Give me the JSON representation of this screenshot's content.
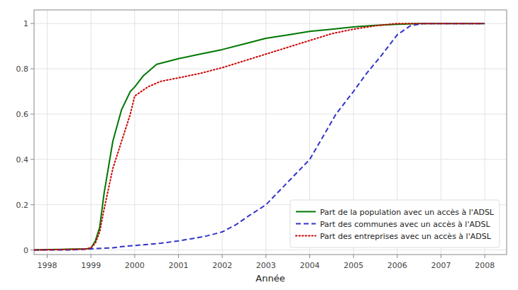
{
  "chart_data": {
    "type": "line",
    "title": "",
    "xlabel": "Année",
    "xlim": [
      1997.7,
      2008.5
    ],
    "ylim": [
      -0.02,
      1.06
    ],
    "xticks": [
      1998,
      1999,
      2000,
      2001,
      2002,
      2003,
      2004,
      2005,
      2006,
      2007,
      2008
    ],
    "yticks": [
      0,
      0.2,
      0.4,
      0.6,
      0.8,
      1
    ],
    "grid": true,
    "legend": "lower right",
    "series": [
      {
        "name": "Part de la population avec un accès à l'ADSL",
        "color": "#007700",
        "line_style": "solid",
        "x": [
          1997.7,
          1998.0,
          1998.3,
          1998.6,
          1998.9,
          1999.0,
          1999.1,
          1999.2,
          1999.3,
          1999.5,
          1999.7,
          1999.9,
          2000.0,
          2000.2,
          2000.5,
          2001.0,
          2001.5,
          2002.0,
          2002.5,
          2003.0,
          2003.5,
          2004.0,
          2004.5,
          2005.0,
          2005.5,
          2006.0,
          2006.5,
          2007.0,
          2007.5,
          2008.0
        ],
        "values": [
          0.0,
          0.002,
          0.003,
          0.004,
          0.005,
          0.008,
          0.04,
          0.1,
          0.25,
          0.48,
          0.62,
          0.7,
          0.72,
          0.77,
          0.82,
          0.845,
          0.865,
          0.885,
          0.91,
          0.935,
          0.95,
          0.965,
          0.975,
          0.985,
          0.992,
          0.997,
          1.0,
          1.0,
          1.0,
          1.0
        ]
      },
      {
        "name": "Part des communes avec un accès à l'ADSL",
        "color": "#3333cc",
        "line_style": "dashed",
        "x": [
          1997.7,
          1998.0,
          1998.5,
          1999.0,
          1999.3,
          1999.5,
          1999.7,
          2000.0,
          2000.3,
          2000.6,
          2001.0,
          2001.3,
          2001.6,
          2002.0,
          2002.3,
          2002.6,
          2003.0,
          2003.3,
          2003.6,
          2004.0,
          2004.3,
          2004.6,
          2005.0,
          2005.3,
          2005.6,
          2006.0,
          2006.3,
          2006.6,
          2007.0,
          2007.5,
          2008.0
        ],
        "values": [
          0.0,
          0.0,
          0.0,
          0.005,
          0.008,
          0.01,
          0.015,
          0.02,
          0.025,
          0.03,
          0.04,
          0.05,
          0.06,
          0.08,
          0.11,
          0.15,
          0.2,
          0.26,
          0.32,
          0.4,
          0.5,
          0.6,
          0.7,
          0.78,
          0.85,
          0.95,
          0.99,
          1.0,
          1.0,
          1.0,
          1.0
        ]
      },
      {
        "name": "Part des entreprises avec un accès à l'ADSL",
        "color": "#cc0000",
        "line_style": "dotted",
        "x": [
          1997.7,
          1998.0,
          1998.3,
          1998.6,
          1998.9,
          1999.0,
          1999.1,
          1999.2,
          1999.3,
          1999.5,
          1999.7,
          1999.9,
          2000.0,
          2000.3,
          2000.6,
          2001.0,
          2001.5,
          2002.0,
          2002.5,
          2003.0,
          2003.5,
          2004.0,
          2004.5,
          2005.0,
          2005.5,
          2006.0,
          2006.5,
          2007.0,
          2007.5,
          2008.0
        ],
        "values": [
          0.0,
          0.001,
          0.002,
          0.003,
          0.005,
          0.01,
          0.03,
          0.08,
          0.18,
          0.36,
          0.48,
          0.6,
          0.68,
          0.72,
          0.745,
          0.76,
          0.78,
          0.805,
          0.835,
          0.865,
          0.895,
          0.925,
          0.955,
          0.975,
          0.99,
          1.0,
          1.0,
          1.0,
          1.0,
          1.0
        ]
      }
    ]
  }
}
